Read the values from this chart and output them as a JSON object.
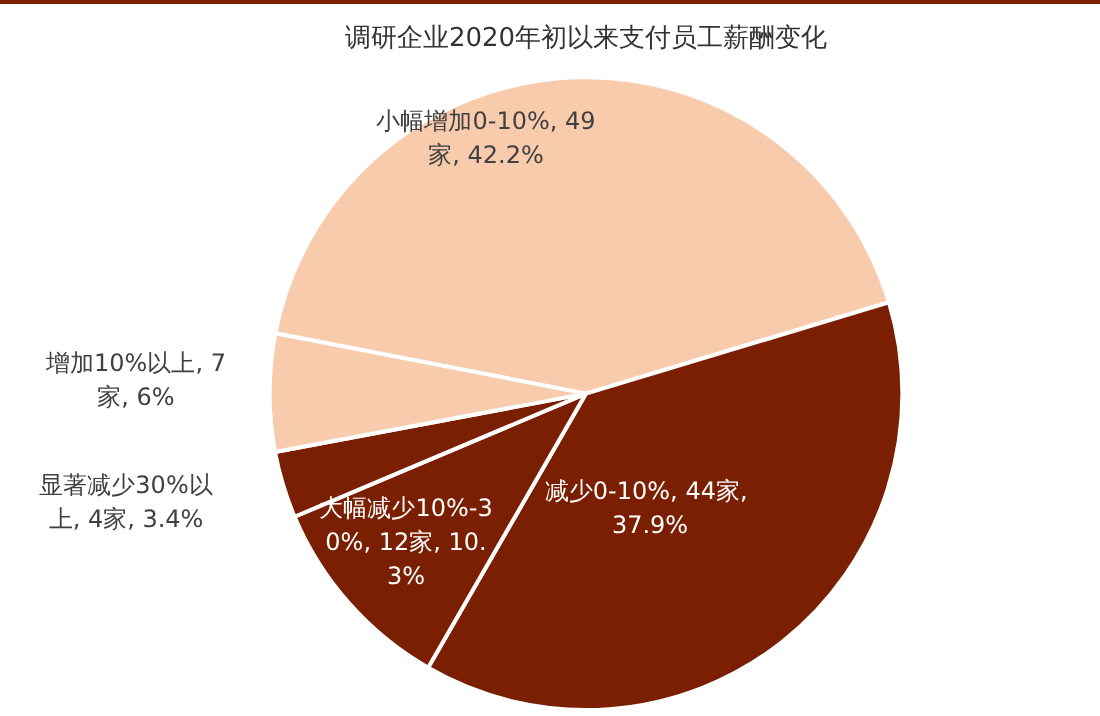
{
  "chart_data": {
    "type": "pie",
    "title": "调研企业2020年初以来支付员工薪酬变化",
    "categories": [
      "小幅增加0-10%",
      "减少0-10%",
      "大幅减少10%-30%",
      "显著减少30%以上",
      "增加10%以上"
    ],
    "values": [
      42.2,
      37.9,
      10.3,
      3.4,
      6
    ],
    "value_labels": [
      "49家, 42.2%",
      "44家, 37.9%",
      "12家, 10.3%",
      "4家, 3.4%",
      "7家, 6%"
    ],
    "colors": [
      "#f8cbad",
      "#7a1f02",
      "#7a1f02",
      "#7a1f02",
      "#f8cbad"
    ],
    "legend": false
  }
}
